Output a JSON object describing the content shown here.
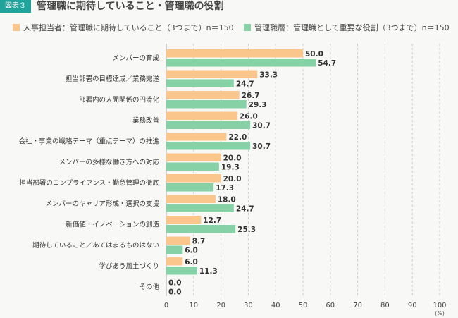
{
  "header": {
    "badge": "図表３",
    "title": "管理職に期待していること・管理職の役割"
  },
  "chart_data": {
    "type": "bar",
    "orientation": "horizontal",
    "categories": [
      "メンバーの育成",
      "担当部署の目標達成／業務完遂",
      "部署内の人間関係の円滑化",
      "業務改善",
      "会社・事業の戦略テーマ（重点テーマ）の推進",
      "メンバーの多様な働き方への対応",
      "担当部署のコンプライアンス・勤怠管理の徹底",
      "メンバーのキャリア形成・選択の支援",
      "新価値・イノベーションの創造",
      "期待していること／あてはまるものはない",
      "学びあう風土づくり",
      "その他"
    ],
    "series": [
      {
        "name": "人事担当者：管理職に期待していること（3つまで）n＝150",
        "color": "#fbc68b",
        "values": [
          50.0,
          33.3,
          26.7,
          26.0,
          22.0,
          20.0,
          20.0,
          18.0,
          12.7,
          8.7,
          6.0,
          0.0
        ]
      },
      {
        "name": "管理職層：管理職として重要な役割（3つまで）n＝150",
        "color": "#86d1a5",
        "values": [
          54.7,
          24.7,
          29.3,
          30.7,
          30.7,
          19.3,
          17.3,
          24.7,
          25.3,
          6.0,
          11.3,
          0.0
        ]
      }
    ],
    "xlim": [
      0,
      100
    ],
    "xticks": [
      "0",
      "10",
      "20",
      "30",
      "40",
      "50",
      "60",
      "70",
      "80",
      "90",
      "100"
    ],
    "xunit": "(%)",
    "grid": true,
    "legend": "top"
  }
}
